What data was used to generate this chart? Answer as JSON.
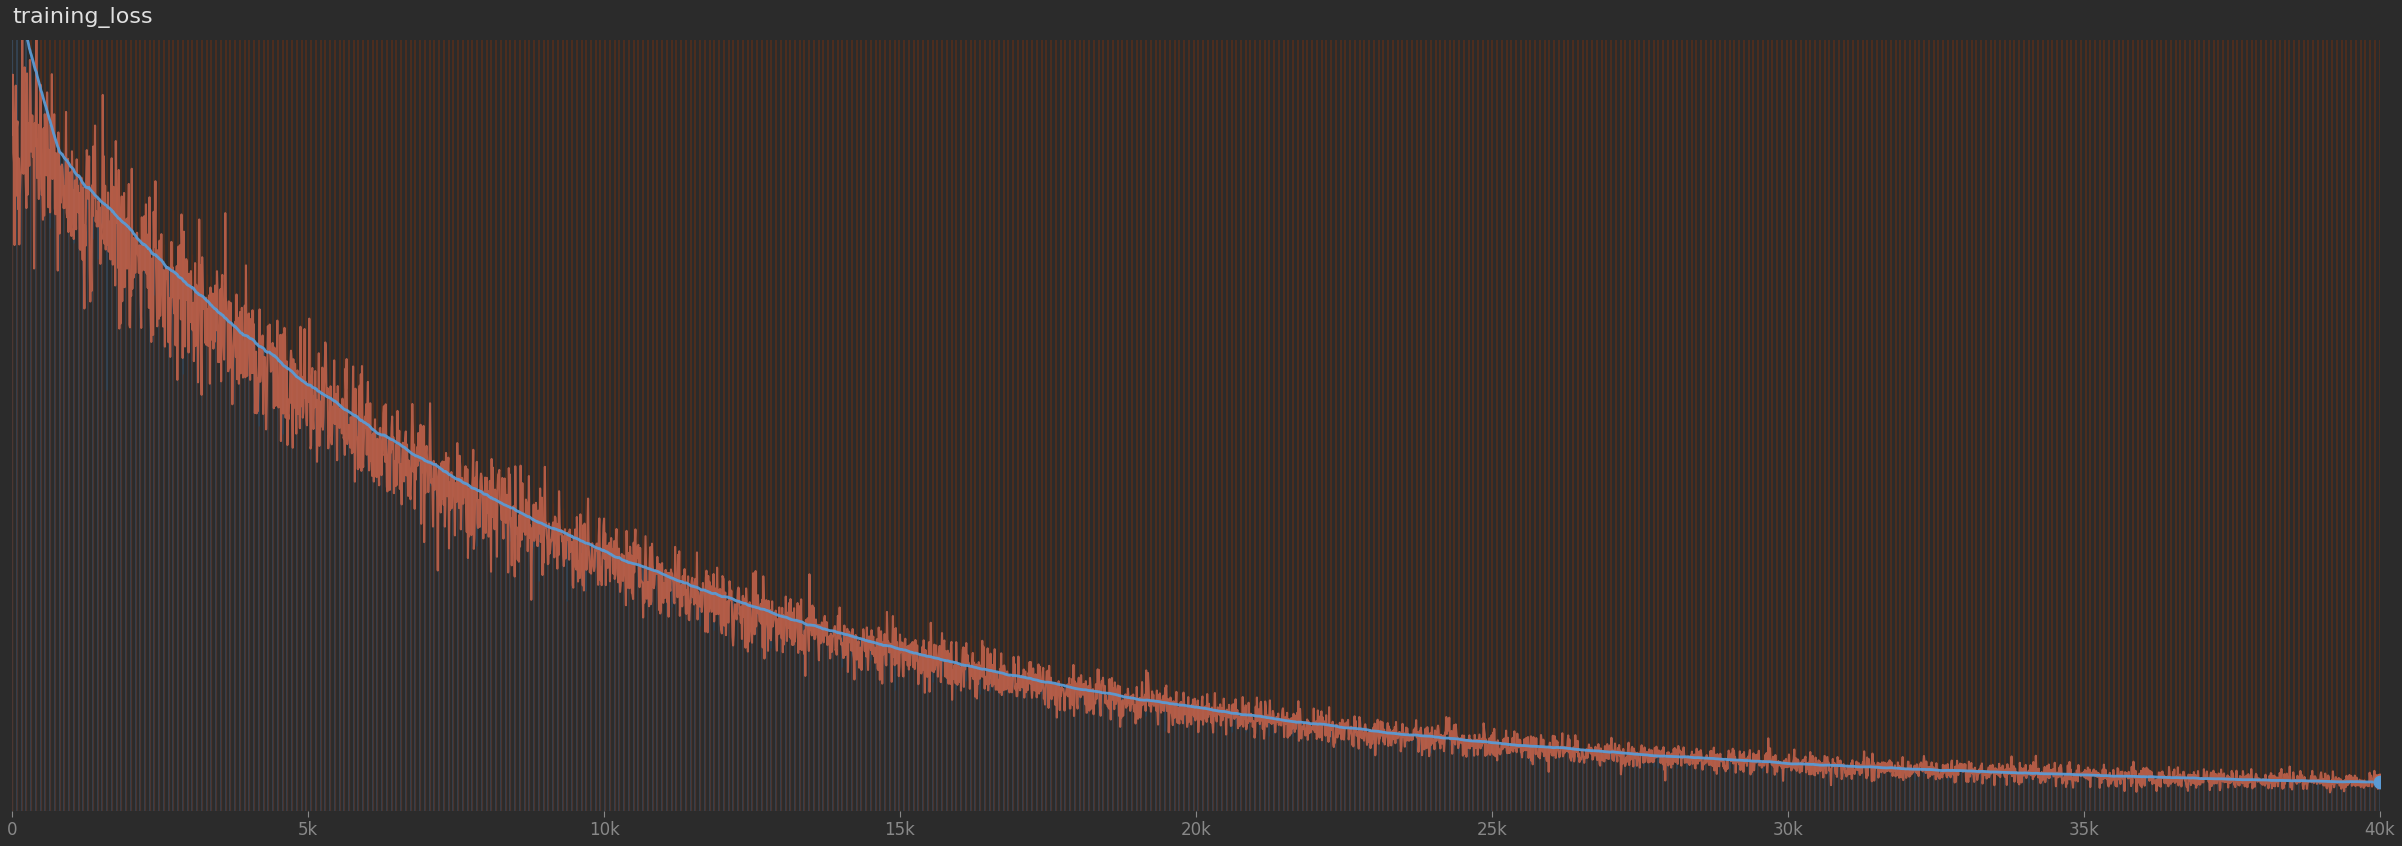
{
  "title": "training_loss",
  "background_color": "#2b2b2b",
  "plot_bg_color": "#2b2b2b",
  "text_color": "#ffffff",
  "x_max": 40000,
  "x_ticks": [
    0,
    5000,
    10000,
    15000,
    20000,
    25000,
    30000,
    35000,
    40000
  ],
  "x_tick_labels": [
    "0",
    "5k",
    "10k",
    "15k",
    "20k",
    "25k",
    "30k",
    "35k",
    "40k"
  ],
  "line_color_blue": "#5b9bd5",
  "line_color_orange": "#c0614a",
  "vert_color_blue": "#2a4a66",
  "vert_color_orange": "#5a2e1a",
  "title_fontsize": 16,
  "title_color": "#e0e0e0",
  "tick_color": "#888888",
  "axis_color": "#666666",
  "y_min": 0.0,
  "y_max": 3.0,
  "n_points": 40001,
  "n_vert_lines": 500
}
